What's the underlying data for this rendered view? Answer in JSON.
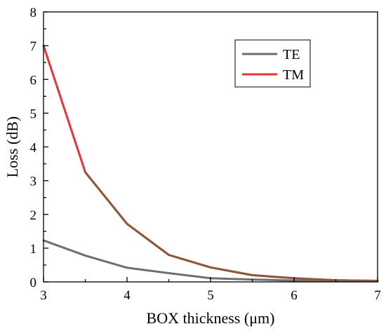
{
  "chart_data": {
    "type": "line",
    "title": "",
    "xlabel": "BOX thickness (μm)",
    "ylabel": "Loss (dB)",
    "xlim": [
      3,
      7
    ],
    "ylim": [
      0,
      8
    ],
    "xticks": [
      "3",
      "4",
      "5",
      "6",
      "7"
    ],
    "yticks": [
      "0",
      "1",
      "2",
      "3",
      "4",
      "5",
      "6",
      "7",
      "8"
    ],
    "grid": false,
    "legend_position": "top-right",
    "series": [
      {
        "name": "TE",
        "color": "#6e6e6e",
        "x": [
          3,
          3.5,
          4,
          4.5,
          5,
          5.5,
          6,
          6.5,
          7
        ],
        "y": [
          1.23,
          0.78,
          0.42,
          0.26,
          0.11,
          0.07,
          0.04,
          0.03,
          0.02
        ]
      },
      {
        "name": "TM",
        "color": "#e8333a",
        "overlay_color": "#8b5a3c",
        "overlay_from_x": 3.5,
        "x": [
          3,
          3.5,
          4,
          4.5,
          5,
          5.5,
          6,
          6.5,
          7
        ],
        "y": [
          7.0,
          3.25,
          1.72,
          0.8,
          0.43,
          0.2,
          0.11,
          0.05,
          0.03
        ]
      }
    ]
  }
}
